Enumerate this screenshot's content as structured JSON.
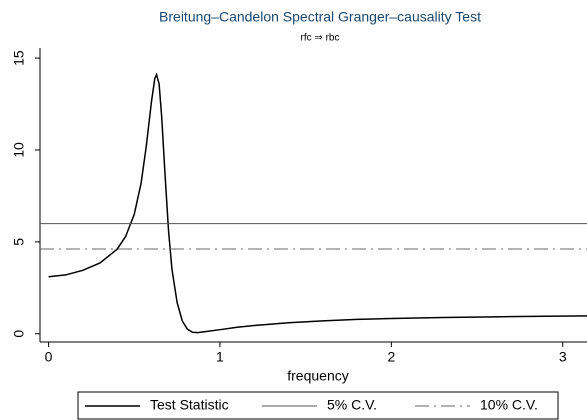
{
  "chart_data": {
    "type": "line",
    "title": "Breitung–Candelon Spectral Granger–causality Test",
    "subtitle": "rfc ⇒ rbc",
    "x_label": "frequency",
    "xlim": [
      -0.05,
      3.1416
    ],
    "ylim": [
      -0.45,
      15.55
    ],
    "xticks": [
      0,
      1,
      2,
      3
    ],
    "yticks": [
      0,
      5,
      10,
      15
    ],
    "series": [
      {
        "name": "Test Statistic",
        "color": "#000000",
        "dash": "solid",
        "x": [
          0,
          0.1,
          0.2,
          0.3,
          0.4,
          0.45,
          0.5,
          0.54,
          0.57,
          0.6,
          0.62,
          0.63,
          0.645,
          0.66,
          0.68,
          0.7,
          0.72,
          0.75,
          0.78,
          0.81,
          0.84,
          0.87,
          0.92,
          1.0,
          1.1,
          1.2,
          1.4,
          1.6,
          1.8,
          2.0,
          2.3,
          2.6,
          2.9,
          3.1416
        ],
        "values": [
          3.1,
          3.2,
          3.45,
          3.85,
          4.6,
          5.3,
          6.5,
          8.2,
          10.2,
          12.6,
          13.9,
          14.1,
          13.6,
          11.8,
          8.6,
          5.6,
          3.5,
          1.7,
          0.7,
          0.25,
          0.08,
          0.06,
          0.12,
          0.22,
          0.35,
          0.45,
          0.6,
          0.7,
          0.78,
          0.83,
          0.88,
          0.92,
          0.95,
          0.97
        ]
      },
      {
        "name": "5% C.V.",
        "color": "#555555",
        "dash": "solid",
        "x": [
          -0.05,
          3.1416
        ],
        "values": [
          5.99,
          5.99
        ]
      },
      {
        "name": "10% C.V.",
        "color": "#666666",
        "dash": "dashdot",
        "x": [
          -0.05,
          3.1416
        ],
        "values": [
          4.61,
          4.61
        ]
      }
    ]
  }
}
